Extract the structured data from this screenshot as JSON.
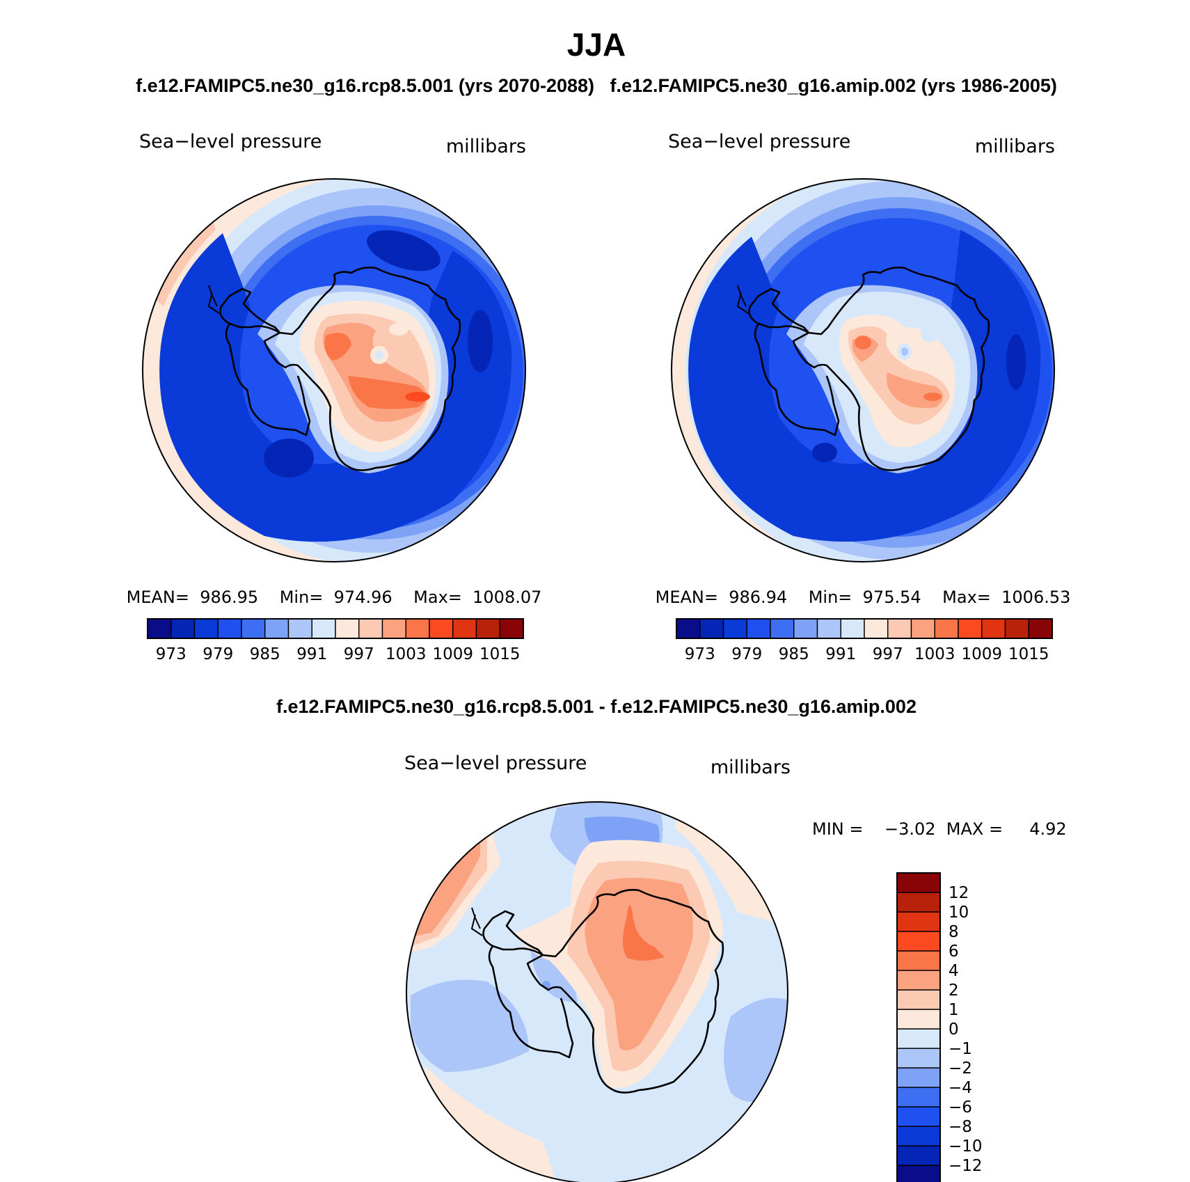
{
  "chart_data": {
    "type": "contour-map",
    "title": "JJA",
    "subtitle": "f.e12.FAMIPC5.ne30_g16.rcp8.5.001 (yrs 2070-2088)   f.e12.FAMIPC5.ne30_g16.amip.002 (yrs 1986-2005)",
    "diff_title": "f.e12.FAMIPC5.ne30_g16.rcp8.5.001 - f.e12.FAMIPC5.ne30_g16.amip.002",
    "panels": [
      {
        "id": "rcp85",
        "variable": "Sea−level pressure",
        "units": "millibars",
        "stats": "MEAN=  986.95    Min=  974.96    Max=  1008.07",
        "mean": 986.95,
        "min": 974.96,
        "max": 1008.07,
        "colorbar_labels": [
          "973",
          "979",
          "985",
          "991",
          "997",
          "1003",
          "1009",
          "1015"
        ]
      },
      {
        "id": "amip",
        "variable": "Sea−level pressure",
        "units": "millibars",
        "stats": "MEAN=  986.94    Min=  975.54    Max=  1006.53",
        "mean": 986.94,
        "min": 975.54,
        "max": 1006.53,
        "colorbar_labels": [
          "973",
          "979",
          "985",
          "991",
          "997",
          "1003",
          "1009",
          "1015"
        ]
      },
      {
        "id": "diff",
        "variable": "Sea−level pressure",
        "units": "millibars",
        "stats": "MIN =    −3.02  MAX =     4.92",
        "min": -3.02,
        "max": 4.92,
        "colorbar_labels": [
          "12",
          "10",
          "8",
          "6",
          "4",
          "2",
          "1",
          "0",
          "−1",
          "−2",
          "−4",
          "−6",
          "−8",
          "−10",
          "−12"
        ]
      }
    ],
    "levels_abs": [
      973,
      976,
      979,
      982,
      985,
      988,
      991,
      994,
      997,
      1000,
      1003,
      1006,
      1009,
      1012,
      1015
    ],
    "levels_diff": [
      -12,
      -10,
      -8,
      -6,
      -4,
      -2,
      -1,
      0,
      1,
      2,
      4,
      6,
      8,
      10,
      12
    ]
  },
  "colors": {
    "abs_palette": [
      "#0a0d8a",
      "#0425b6",
      "#0a3ad8",
      "#1f50f0",
      "#3e6ef2",
      "#7ea3f6",
      "#adc6fa",
      "#d8e8fb",
      "#fde9dc",
      "#fccab2",
      "#fba381",
      "#fa7649",
      "#fb4a20",
      "#e03412",
      "#b8220b",
      "#880406"
    ],
    "diff_palette": [
      "#0a0d8a",
      "#0425b6",
      "#0a3ad8",
      "#1f50f0",
      "#3e6ef2",
      "#7ea3f6",
      "#adc6fa",
      "#d8e8fb",
      "#fde9dc",
      "#fccab2",
      "#fba381",
      "#fa7649",
      "#fb4a20",
      "#e03412",
      "#b8220b",
      "#880406"
    ],
    "coastline": "#000000"
  }
}
